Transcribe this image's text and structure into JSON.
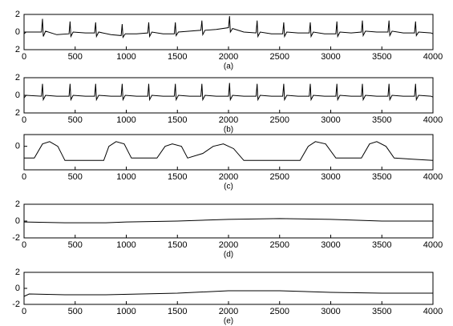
{
  "chart_data": [
    {
      "type": "line",
      "x_label": "(a)",
      "x": [
        0,
        20,
        170,
        180,
        188,
        210,
        320,
        440,
        450,
        458,
        480,
        600,
        690,
        700,
        708,
        730,
        850,
        950,
        960,
        968,
        990,
        1100,
        1210,
        1220,
        1228,
        1250,
        1360,
        1470,
        1480,
        1488,
        1510,
        1620,
        1730,
        1740,
        1748,
        1770,
        1880,
        2000,
        2010,
        2018,
        2040,
        2150,
        2270,
        2280,
        2288,
        2310,
        2420,
        2530,
        2540,
        2548,
        2570,
        2680,
        2790,
        2800,
        2808,
        2830,
        2940,
        3050,
        3060,
        3068,
        3090,
        3200,
        3300,
        3310,
        3318,
        3340,
        3450,
        3560,
        3570,
        3578,
        3600,
        3710,
        3820,
        3830,
        3838,
        3860,
        3980,
        4000
      ],
      "values": [
        -0.2,
        0,
        0,
        1.5,
        -0.5,
        0.1,
        -0.3,
        -0.2,
        1.2,
        -0.5,
        0,
        -0.1,
        -0.1,
        1.1,
        -0.5,
        0,
        -0.3,
        -0.4,
        0.9,
        -0.6,
        -0.2,
        -0.2,
        -0.1,
        1.1,
        -0.5,
        0,
        -0.2,
        -0.2,
        1.1,
        -0.4,
        0,
        0.1,
        0.2,
        1.3,
        -0.3,
        0.2,
        0.3,
        0.5,
        1.8,
        0,
        0.4,
        0,
        -0.1,
        1.3,
        -0.5,
        0,
        -0.2,
        -0.2,
        1.1,
        -0.5,
        0,
        -0.1,
        -0.1,
        1.1,
        -0.5,
        0,
        -0.2,
        -0.2,
        1.2,
        -0.5,
        0,
        -0.1,
        0,
        1.3,
        -0.4,
        0.1,
        0,
        0,
        1.3,
        -0.4,
        0.1,
        -0.1,
        -0.1,
        1.2,
        -0.4,
        0,
        -0.1,
        -0.2
      ],
      "color": "#000000",
      "xlim": [
        0,
        4000
      ],
      "ylim": [
        -2,
        2
      ],
      "xticks": [
        0,
        500,
        1000,
        1500,
        2000,
        2500,
        3000,
        3500,
        4000
      ],
      "yticks": [
        {
          "value": 2,
          "label": "2"
        },
        0,
        {
          "value": -2,
          "label": "2"
        }
      ]
    },
    {
      "type": "line",
      "x_label": "(b)",
      "x": [
        0,
        20,
        170,
        180,
        188,
        210,
        320,
        440,
        450,
        458,
        480,
        600,
        690,
        700,
        708,
        730,
        850,
        950,
        960,
        968,
        990,
        1100,
        1210,
        1220,
        1228,
        1250,
        1360,
        1470,
        1480,
        1488,
        1510,
        1620,
        1730,
        1740,
        1748,
        1770,
        1880,
        2000,
        2010,
        2018,
        2040,
        2150,
        2270,
        2280,
        2288,
        2310,
        2420,
        2530,
        2540,
        2548,
        2570,
        2680,
        2790,
        2800,
        2808,
        2830,
        2940,
        3050,
        3060,
        3068,
        3090,
        3200,
        3300,
        3310,
        3318,
        3340,
        3450,
        3560,
        3570,
        3578,
        3600,
        3710,
        3820,
        3830,
        3838,
        3860,
        3980,
        4000
      ],
      "values": [
        -0.3,
        0,
        -0.1,
        1.3,
        -0.5,
        0,
        -0.1,
        -0.1,
        1.3,
        -0.5,
        0,
        -0.1,
        -0.1,
        1.3,
        -0.5,
        0,
        -0.1,
        -0.1,
        1.3,
        -0.5,
        0,
        -0.1,
        -0.1,
        1.3,
        -0.5,
        0,
        -0.1,
        -0.1,
        1.3,
        -0.5,
        0,
        -0.1,
        -0.1,
        1.3,
        -0.5,
        0,
        -0.1,
        -0.1,
        1.4,
        -0.5,
        0,
        -0.1,
        -0.1,
        1.3,
        -0.5,
        0,
        -0.1,
        -0.1,
        1.3,
        -0.5,
        0,
        -0.1,
        -0.1,
        1.3,
        -0.5,
        0,
        -0.1,
        -0.1,
        1.3,
        -0.5,
        0,
        -0.1,
        -0.1,
        1.3,
        -0.5,
        0,
        -0.1,
        -0.1,
        1.3,
        -0.5,
        0,
        -0.1,
        -0.1,
        1.3,
        -0.5,
        0,
        -0.1,
        -0.2
      ],
      "color": "#000000",
      "xlim": [
        0,
        4000
      ],
      "ylim": [
        -2,
        2
      ],
      "xticks": [
        0,
        500,
        1000,
        1500,
        2000,
        2500,
        3000,
        3500,
        4000
      ],
      "yticks": [
        {
          "value": 2,
          "label": "2"
        },
        0,
        {
          "value": -2,
          "label": "2"
        }
      ]
    },
    {
      "type": "line",
      "x_label": "(c)",
      "x": [
        0,
        100,
        180,
        250,
        330,
        400,
        780,
        830,
        900,
        980,
        1050,
        1300,
        1380,
        1450,
        1540,
        1600,
        1750,
        1850,
        1950,
        2050,
        2150,
        2700,
        2780,
        2850,
        2950,
        3050,
        3300,
        3380,
        3450,
        3540,
        3620,
        4000
      ],
      "values": [
        -0.5,
        -0.5,
        0.1,
        0.2,
        0,
        -0.6,
        -0.6,
        0,
        0.2,
        0.1,
        -0.5,
        -0.5,
        0,
        0.1,
        0,
        -0.5,
        -0.3,
        0,
        0.1,
        -0.1,
        -0.6,
        -0.6,
        0,
        0.2,
        0.1,
        -0.5,
        -0.5,
        0.1,
        0.2,
        0,
        -0.5,
        -0.6
      ],
      "color": "#000000",
      "xlim": [
        0,
        4000
      ],
      "ylim": [
        -1,
        0.5
      ],
      "xticks": [
        0,
        500,
        1000,
        1500,
        2000,
        2500,
        3000,
        3500,
        4000
      ],
      "yticks": [
        0
      ]
    },
    {
      "type": "line",
      "x_label": "(d)",
      "x": [
        0,
        400,
        800,
        1000,
        1500,
        2000,
        2500,
        3000,
        3500,
        4000
      ],
      "values": [
        -0.1,
        -0.2,
        -0.2,
        -0.1,
        0,
        0.2,
        0.3,
        0.2,
        0,
        0
      ],
      "color": "#000000",
      "xlim": [
        0,
        4000
      ],
      "ylim": [
        -2,
        2
      ],
      "xticks": [
        0,
        500,
        1000,
        1500,
        2000,
        2500,
        3000,
        3500,
        4000
      ],
      "yticks": [
        2,
        0,
        -2
      ]
    },
    {
      "type": "line",
      "x_label": "(e)",
      "x": [
        0,
        50,
        400,
        800,
        1500,
        2000,
        2500,
        3000,
        3500,
        4000
      ],
      "values": [
        -1,
        -0.7,
        -0.8,
        -0.8,
        -0.6,
        -0.3,
        -0.3,
        -0.5,
        -0.6,
        -0.6
      ],
      "color": "#000000",
      "xlim": [
        0,
        4000
      ],
      "ylim": [
        -2,
        2
      ],
      "xticks": [
        0,
        500,
        1000,
        1500,
        2000,
        2500,
        3000,
        3500,
        4000
      ],
      "yticks": [
        2,
        0,
        -2
      ]
    }
  ]
}
